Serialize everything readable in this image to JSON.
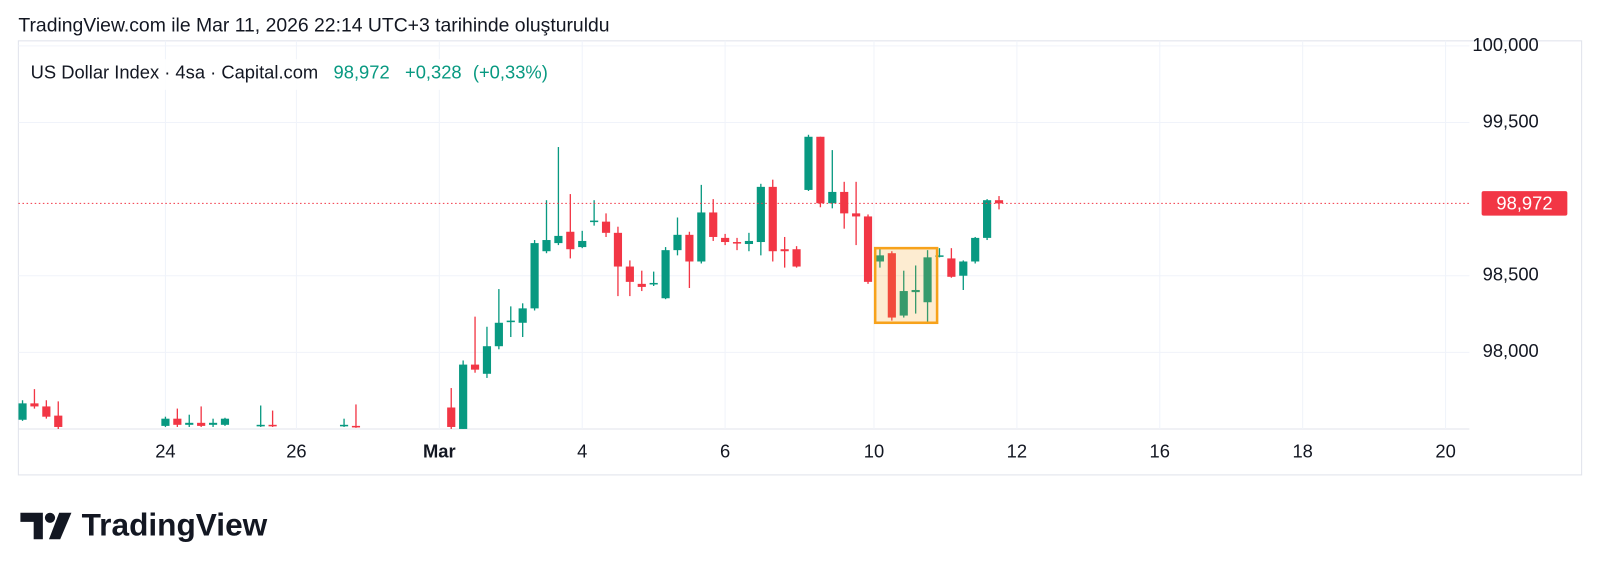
{
  "header": {
    "created": "TradingView.com ile Mar 11, 2026 22:14 UTC+3 tarihinde oluşturuldu"
  },
  "brand": "TradingView",
  "chart_data": {
    "type": "candlestick",
    "symbol": "US Dollar Index · 4sa · Capital.com",
    "last": "98,972",
    "change": "+0,328",
    "change_pct": "(+0,33%)",
    "up_color": "#089981",
    "down_color": "#f23645",
    "x": [
      0,
      1,
      2,
      3,
      12,
      13,
      14,
      15,
      16,
      17,
      20,
      21,
      27,
      28,
      36,
      37,
      38,
      39,
      40,
      41,
      42,
      43,
      44,
      45,
      46,
      47,
      48,
      49,
      50,
      51,
      52,
      53,
      54,
      55,
      56,
      57,
      58,
      59,
      60,
      61,
      62,
      63,
      64,
      65,
      66,
      67,
      68,
      69,
      70,
      71,
      72,
      73,
      74,
      75,
      76,
      77,
      78,
      79,
      80,
      81,
      82
    ],
    "open": [
      97560,
      97667,
      97647,
      97587,
      97520,
      97567,
      97527,
      97540,
      97527,
      97527,
      97520,
      97527,
      97520,
      97520,
      97640,
      97500,
      97920,
      97860,
      98040,
      98200,
      98193,
      98287,
      98660,
      98713,
      98787,
      98687,
      98853,
      98853,
      98780,
      98560,
      98447,
      98447,
      98353,
      98667,
      98767,
      98593,
      98913,
      98747,
      98720,
      98707,
      98720,
      99080,
      98673,
      98673,
      99060,
      99407,
      98973,
      99047,
      98907,
      98887,
      98593,
      98647,
      98240,
      98393,
      98327,
      98627,
      98613,
      98500,
      98593,
      98747,
      98993
    ],
    "high": [
      97687,
      97760,
      97687,
      97680,
      97580,
      97633,
      97593,
      97647,
      97567,
      97573,
      97653,
      97620,
      97567,
      97660,
      97767,
      97947,
      98233,
      98167,
      98413,
      98300,
      98320,
      98733,
      98993,
      99340,
      99033,
      98793,
      98993,
      98907,
      98820,
      98600,
      98533,
      98527,
      98687,
      98880,
      98787,
      99093,
      99000,
      98773,
      98747,
      98780,
      99100,
      99127,
      98753,
      98693,
      99420,
      99407,
      99320,
      99113,
      99113,
      98900,
      98687,
      98660,
      98533,
      98567,
      98667,
      98680,
      98680,
      98600,
      98753,
      99000,
      99020
    ],
    "low": [
      97553,
      97633,
      97567,
      97500,
      97513,
      97513,
      97513,
      97513,
      97513,
      97520,
      97513,
      97513,
      97513,
      97507,
      97500,
      97500,
      97867,
      97833,
      98020,
      98100,
      98100,
      98273,
      98647,
      98700,
      98613,
      98680,
      98827,
      98753,
      98367,
      98367,
      98400,
      98433,
      98347,
      98633,
      98420,
      98580,
      98727,
      98700,
      98667,
      98660,
      98633,
      98593,
      98553,
      98553,
      99053,
      98947,
      98940,
      98807,
      98700,
      98447,
      98553,
      98207,
      98227,
      98253,
      98193,
      98620,
      98487,
      98407,
      98580,
      98733,
      98933
    ],
    "close": [
      97667,
      97647,
      97580,
      97513,
      97567,
      97527,
      97540,
      97520,
      97540,
      97567,
      97527,
      97520,
      97527,
      97513,
      97513,
      97920,
      97887,
      98040,
      98193,
      98207,
      98287,
      98713,
      98733,
      98760,
      98673,
      98727,
      98860,
      98780,
      98560,
      98460,
      98427,
      98453,
      98667,
      98767,
      98593,
      98913,
      98753,
      98720,
      98713,
      98727,
      99080,
      98660,
      98660,
      98560,
      99407,
      98973,
      99047,
      98907,
      98887,
      98460,
      98633,
      98227,
      98400,
      98407,
      98620,
      98633,
      98493,
      98593,
      98747,
      98993,
      98972
    ],
    "xlim": [
      -0.35,
      121.5
    ],
    "xticks": [
      {
        "value": 12,
        "label": "24"
      },
      {
        "value": 23,
        "label": "26"
      },
      {
        "value": 35,
        "label": "Mar"
      },
      {
        "value": 47,
        "label": "4"
      },
      {
        "value": 59,
        "label": "6"
      },
      {
        "value": 71.5,
        "label": "10"
      },
      {
        "value": 83.5,
        "label": "12"
      },
      {
        "value": 95.5,
        "label": "16"
      },
      {
        "value": 107.5,
        "label": "18"
      },
      {
        "value": 119.5,
        "label": "20"
      }
    ],
    "ylim": [
      97500,
      100033
    ],
    "yticks": [
      {
        "value": 98000,
        "label": "98,000"
      },
      {
        "value": 98500,
        "label": "98,500"
      },
      {
        "value": 99500,
        "label": "99,500"
      },
      {
        "value": 100000,
        "label": "100,000"
      }
    ],
    "grid": true,
    "last_price": {
      "value": 98972,
      "label": "98,972"
    },
    "highlight_box": {
      "x": [
        71.6,
        76.8
      ],
      "y": [
        98193,
        98680
      ],
      "color": "#f7a21b"
    }
  }
}
